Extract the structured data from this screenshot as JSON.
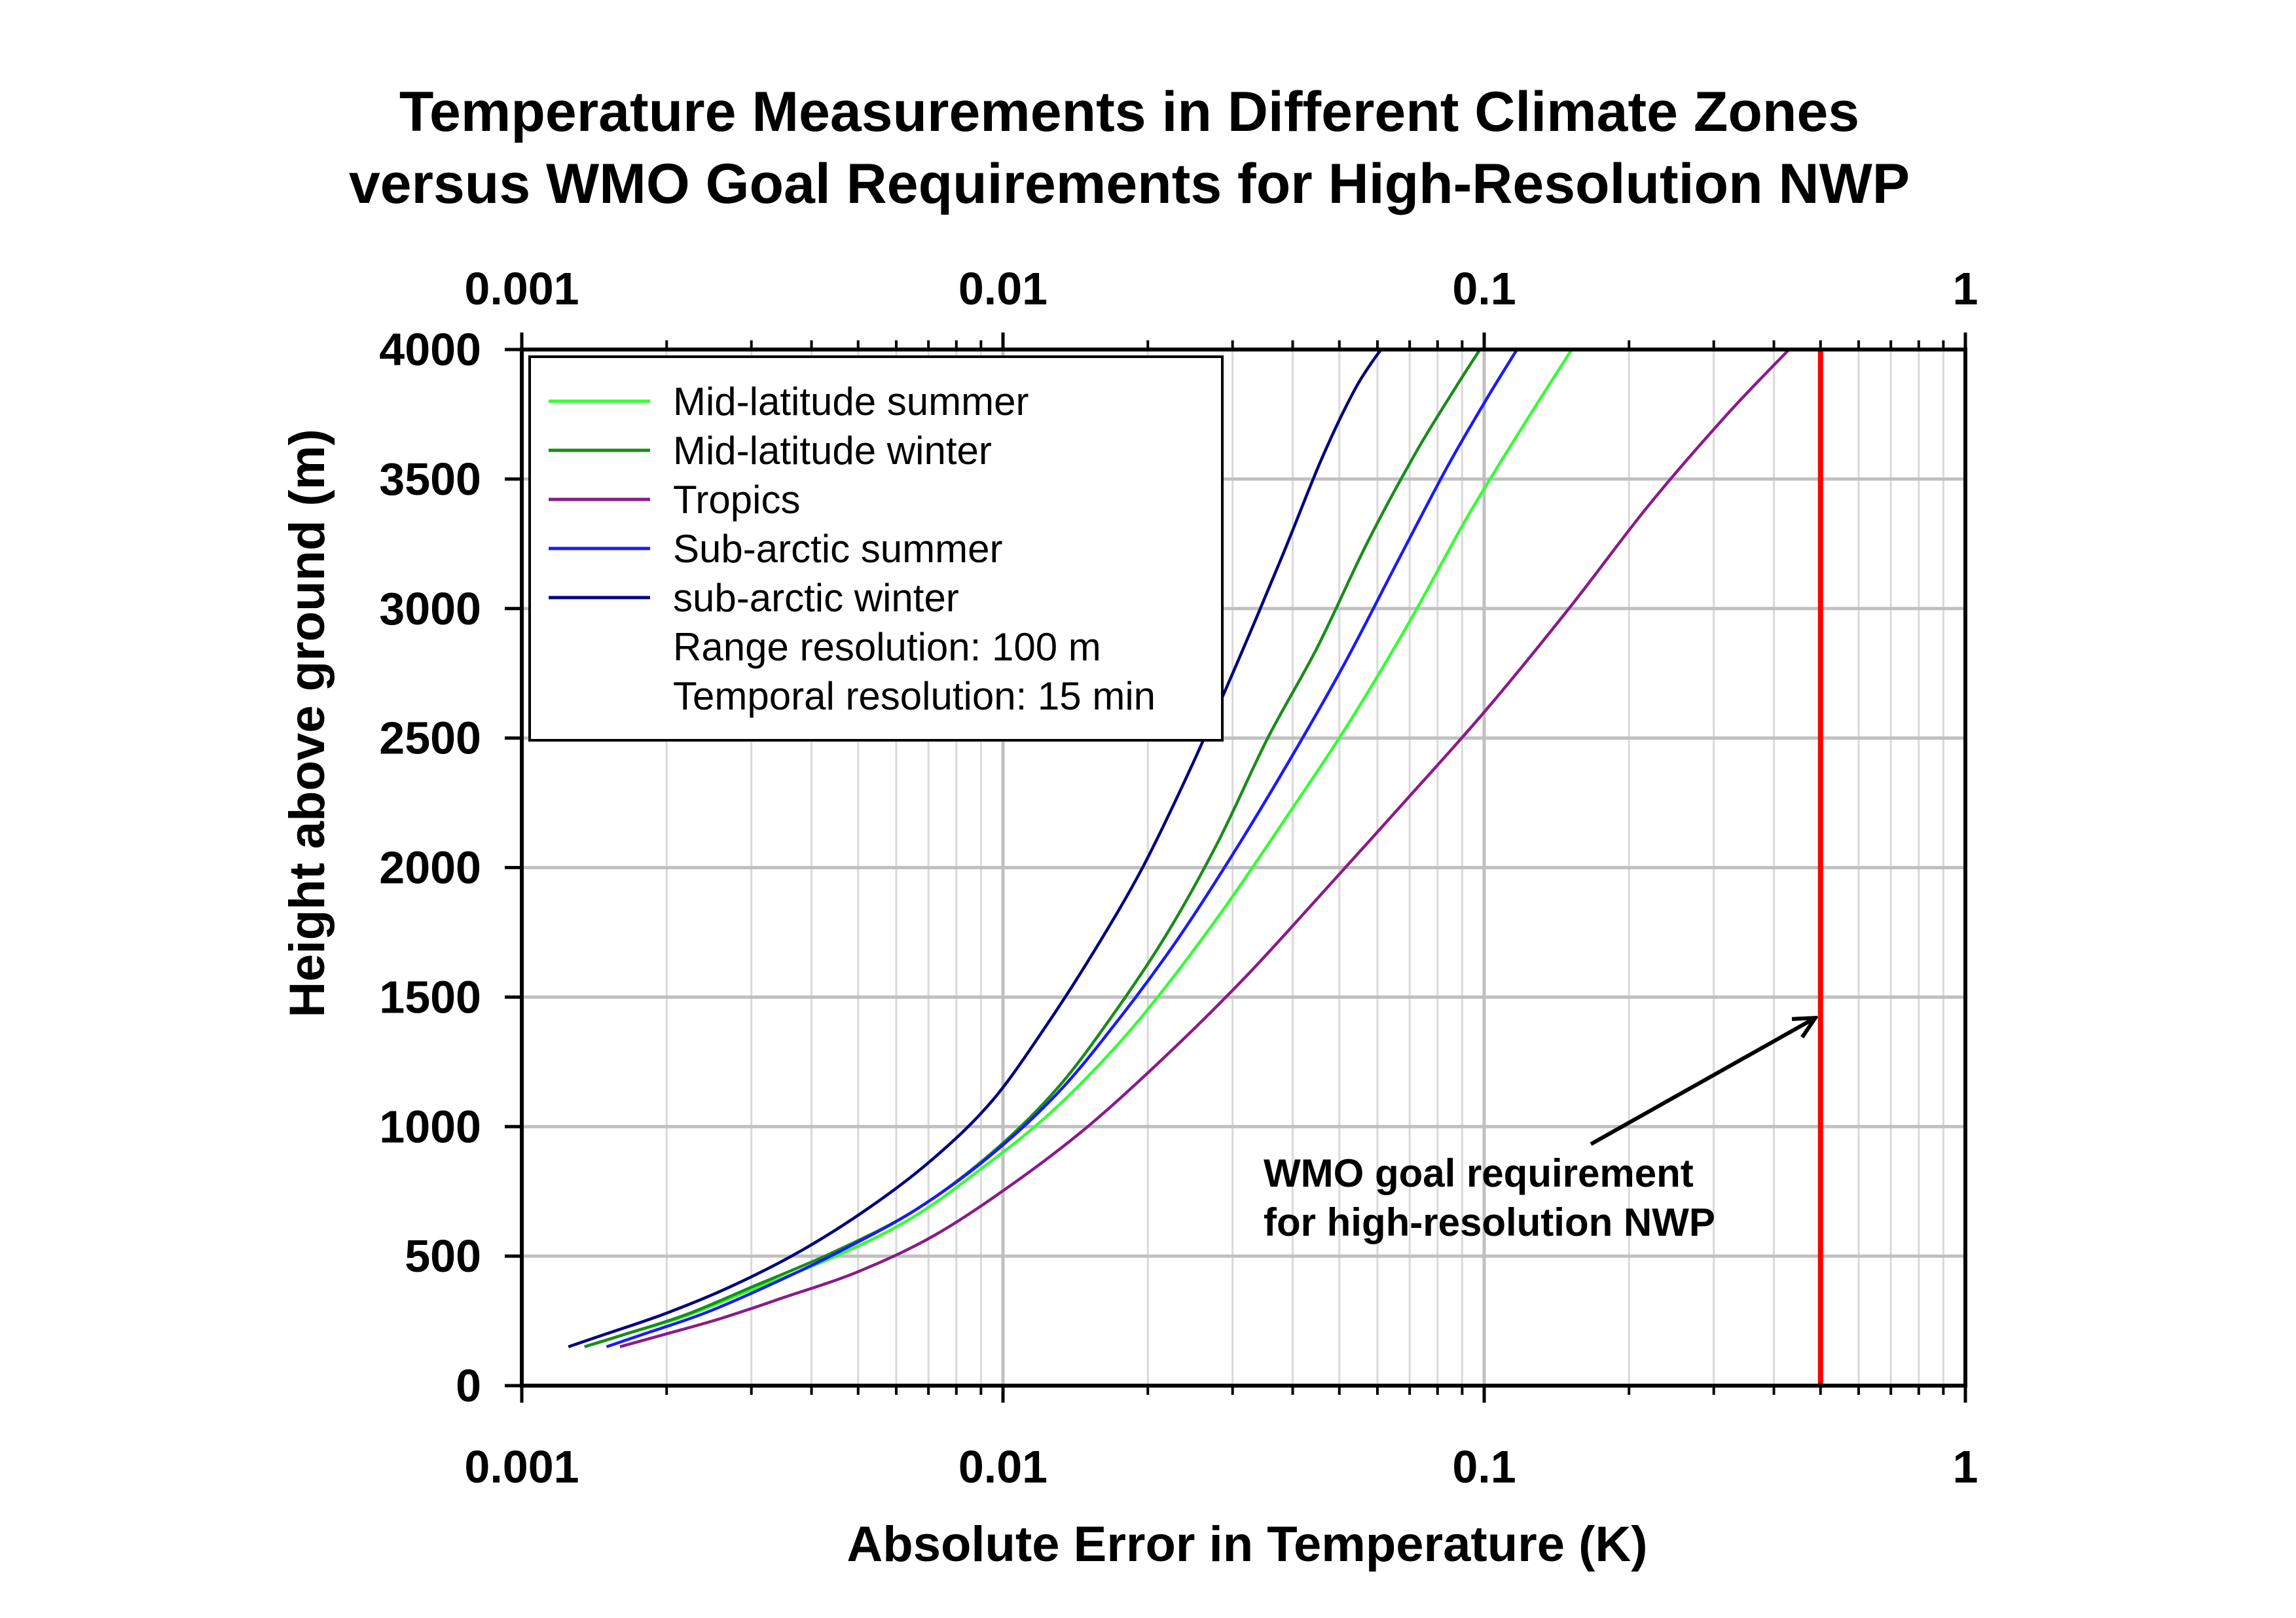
{
  "chart_data": {
    "type": "line",
    "title": [
      "Temperature Measurements in Different Climate Zones",
      "versus WMO Goal Requirements for High-Resolution NWP"
    ],
    "xlabel": "Absolute Error in Temperature (K)",
    "ylabel": "Height above ground (m)",
    "xscale": "log",
    "xlim": [
      0.001,
      1
    ],
    "ylim": [
      0,
      4000
    ],
    "x_ticks": [
      0.001,
      0.01,
      0.1,
      1
    ],
    "x_tick_labels": [
      "0.001",
      "0.01",
      "0.1",
      "1"
    ],
    "y_ticks": [
      0,
      500,
      1000,
      1500,
      2000,
      2500,
      3000,
      3500,
      4000
    ],
    "y_tick_labels": [
      "0",
      "500",
      "1000",
      "1500",
      "2000",
      "2500",
      "3000",
      "3500",
      "4000"
    ],
    "top_axis_tick_labels": true,
    "grid": true,
    "legend_position": "top-left",
    "series": [
      {
        "name": "Mid-latitude summer",
        "color": "#33ff33",
        "x": [
          0.00135,
          0.00165,
          0.0022,
          0.003,
          0.0045,
          0.0065,
          0.0092,
          0.0125,
          0.017,
          0.022,
          0.029,
          0.039,
          0.052,
          0.07,
          0.092,
          0.12,
          0.152
        ],
        "y": [
          150,
          200,
          270,
          370,
          500,
          650,
          850,
          1050,
          1300,
          1550,
          1850,
          2200,
          2550,
          2950,
          3350,
          3700,
          4000
        ]
      },
      {
        "name": "Mid-latitude winter",
        "color": "#1a8c1a",
        "x": [
          0.00135,
          0.00165,
          0.0022,
          0.003,
          0.0045,
          0.0066,
          0.0095,
          0.013,
          0.0172,
          0.022,
          0.028,
          0.0355,
          0.045,
          0.057,
          0.072,
          0.087,
          0.098
        ],
        "y": [
          150,
          200,
          275,
          380,
          520,
          680,
          900,
          1150,
          1450,
          1750,
          2100,
          2500,
          2850,
          3250,
          3600,
          3850,
          4000
        ]
      },
      {
        "name": "Tropics",
        "color": "#8b1a8b",
        "x": [
          0.0016,
          0.002,
          0.0026,
          0.0035,
          0.005,
          0.0072,
          0.0105,
          0.015,
          0.022,
          0.032,
          0.046,
          0.068,
          0.1,
          0.15,
          0.22,
          0.32,
          0.43
        ],
        "y": [
          150,
          200,
          260,
          340,
          440,
          580,
          780,
          1000,
          1280,
          1580,
          1900,
          2250,
          2600,
          3000,
          3400,
          3750,
          4000
        ]
      },
      {
        "name": "Sub-arctic summer",
        "color": "#1a1aff",
        "x": [
          0.0015,
          0.0018,
          0.0024,
          0.0032,
          0.0046,
          0.0066,
          0.0093,
          0.013,
          0.0175,
          0.023,
          0.03,
          0.039,
          0.051,
          0.066,
          0.084,
          0.102,
          0.117
        ],
        "y": [
          150,
          200,
          280,
          380,
          520,
          680,
          880,
          1130,
          1420,
          1720,
          2050,
          2400,
          2780,
          3180,
          3550,
          3820,
          4000
        ]
      },
      {
        "name": "sub-arctic winter",
        "color": "#000080",
        "x": [
          0.00125,
          0.0015,
          0.002,
          0.0027,
          0.0038,
          0.0053,
          0.0072,
          0.0095,
          0.0122,
          0.0155,
          0.0195,
          0.0245,
          0.0305,
          0.038,
          0.046,
          0.054,
          0.061
        ],
        "y": [
          150,
          200,
          280,
          380,
          520,
          690,
          880,
          1100,
          1380,
          1680,
          2000,
          2380,
          2780,
          3200,
          3580,
          3850,
          4000
        ]
      }
    ],
    "legend_notes": [
      "Range resolution: 100 m",
      "Temporal resolution: 15 min"
    ],
    "reference_line": {
      "x": 0.5,
      "color": "#ff0000"
    },
    "annotation": {
      "lines": [
        "WMO goal requirement",
        "for high-resolution NWP"
      ],
      "arrow_to": {
        "x": 0.5,
        "y": 1450
      }
    }
  }
}
